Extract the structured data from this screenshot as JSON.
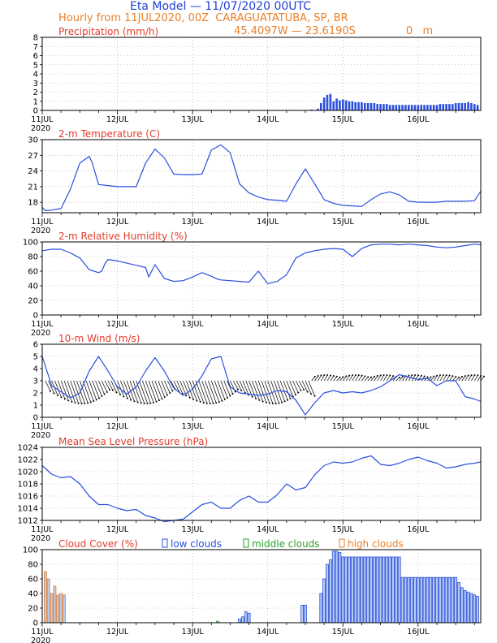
{
  "header": {
    "title": "Eta Model — 11/07/2020 00UTC",
    "subtitle": "Hourly from 11JUL2020, 00Z  CARAGUATATUBA, SP, BR",
    "coords": "45.4097W — 23.6190S",
    "elevation": "0   m"
  },
  "colors": {
    "title": "#1f3fd6",
    "subtitle": "#e8802a",
    "panel_title": "#e23b2b",
    "series": "#2a4fe0",
    "low": "#2a4fe0",
    "mid": "#2aa02a",
    "high": "#e8802a",
    "bar_fill": "#b9ccee",
    "wind": "#000000"
  },
  "chart_data": [
    {
      "type": "bar",
      "title": "Precipitation (mm/h)",
      "xticks": [
        "11JUL",
        "12JUL",
        "13JUL",
        "14JUL",
        "15JUL",
        "16JUL"
      ],
      "year_label": "2020",
      "ylim": [
        0,
        8
      ],
      "yticks": [
        0,
        1,
        2,
        3,
        4,
        5,
        6,
        7,
        8
      ],
      "grid": true,
      "x_hours": [
        80,
        86,
        88,
        89,
        90,
        91,
        92,
        93,
        94,
        95,
        96,
        97,
        98,
        99,
        100,
        101,
        102,
        103,
        104,
        105,
        106,
        107,
        108,
        109,
        110,
        111,
        112,
        113,
        114,
        115,
        116,
        117,
        118,
        119,
        120,
        121,
        122,
        123,
        124,
        125,
        126,
        127,
        128,
        129,
        130,
        131,
        132,
        133,
        134,
        135,
        136,
        137,
        138,
        139
      ],
      "values": [
        0.05,
        0.1,
        0.2,
        0.8,
        1.4,
        1.7,
        1.8,
        1.0,
        1.3,
        1.1,
        1.2,
        1.1,
        1.0,
        1.0,
        0.9,
        0.9,
        0.9,
        0.8,
        0.8,
        0.8,
        0.8,
        0.7,
        0.7,
        0.7,
        0.7,
        0.6,
        0.6,
        0.6,
        0.6,
        0.6,
        0.6,
        0.6,
        0.6,
        0.6,
        0.6,
        0.6,
        0.6,
        0.6,
        0.6,
        0.6,
        0.6,
        0.7,
        0.7,
        0.7,
        0.7,
        0.7,
        0.8,
        0.8,
        0.8,
        0.8,
        0.9,
        0.8,
        0.7,
        0.6
      ]
    },
    {
      "type": "line",
      "title": "2-m Temperature (C)",
      "xticks": [
        "11JUL",
        "12JUL",
        "13JUL",
        "14JUL",
        "15JUL",
        "16JUL"
      ],
      "year_label": "2020",
      "ylim": [
        16,
        30
      ],
      "yticks": [
        18,
        21,
        24,
        27,
        30
      ],
      "grid": true,
      "x_hours": [
        0,
        1,
        3,
        6,
        9,
        12,
        15,
        16,
        18,
        21,
        24,
        27,
        30,
        33,
        36,
        39,
        42,
        45,
        48,
        51,
        54,
        57,
        60,
        63,
        66,
        69,
        72,
        75,
        78,
        81,
        84,
        87,
        90,
        93,
        96,
        99,
        102,
        105,
        108,
        111,
        114,
        117,
        120,
        123,
        126,
        129,
        132,
        135,
        138,
        140
      ],
      "values": [
        17.0,
        16.4,
        16.5,
        16.8,
        20.5,
        25.5,
        26.8,
        25.5,
        21.4,
        21.2,
        21.0,
        21.0,
        21.0,
        25.5,
        28.2,
        26.5,
        23.4,
        23.3,
        23.3,
        23.4,
        28.0,
        29.0,
        27.5,
        21.5,
        19.8,
        19.0,
        18.5,
        18.4,
        18.2,
        21.5,
        24.4,
        21.5,
        18.5,
        17.8,
        17.4,
        17.3,
        17.2,
        18.5,
        19.6,
        20.0,
        19.4,
        18.2,
        18.0,
        18.0,
        18.0,
        18.2,
        18.2,
        18.2,
        18.3,
        20.1
      ]
    },
    {
      "type": "line",
      "title": "2-m Relative Humidity (%)",
      "xticks": [
        "11JUL",
        "12JUL",
        "13JUL",
        "14JUL",
        "15JUL",
        "16JUL"
      ],
      "year_label": "2020",
      "ylim": [
        0,
        100
      ],
      "yticks": [
        0,
        20,
        40,
        60,
        80,
        100
      ],
      "grid": true,
      "x_hours": [
        0,
        3,
        6,
        9,
        12,
        15,
        18,
        19,
        20,
        21,
        24,
        27,
        30,
        33,
        34,
        36,
        39,
        42,
        45,
        48,
        51,
        54,
        55,
        56,
        57,
        60,
        63,
        66,
        69,
        72,
        75,
        78,
        81,
        84,
        87,
        90,
        93,
        96,
        99,
        102,
        105,
        108,
        111,
        114,
        117,
        120,
        123,
        126,
        129,
        132,
        135,
        138,
        140
      ],
      "values": [
        88,
        90,
        90,
        85,
        78,
        62,
        58,
        60,
        70,
        76,
        74,
        71,
        68,
        65,
        52,
        69,
        50,
        46,
        47,
        52,
        58,
        53,
        51,
        49,
        48,
        47,
        46,
        45,
        60,
        43,
        46,
        55,
        78,
        85,
        88,
        90,
        91,
        90,
        80,
        91,
        96,
        97,
        97,
        96,
        97,
        96,
        95,
        93,
        92,
        93,
        95,
        97,
        96
      ]
    },
    {
      "type": "line",
      "title": "10-m Wind (m/s)",
      "xticks": [
        "11JUL",
        "12JUL",
        "13JUL",
        "14JUL",
        "15JUL",
        "16JUL"
      ],
      "year_label": "2020",
      "ylim": [
        0,
        6
      ],
      "yticks": [
        0,
        1,
        2,
        3,
        4,
        5,
        6
      ],
      "grid": true,
      "wind_barbs": true,
      "x_hours": [
        0,
        3,
        6,
        9,
        12,
        15,
        18,
        21,
        24,
        27,
        30,
        33,
        36,
        39,
        42,
        45,
        48,
        51,
        54,
        57,
        60,
        63,
        66,
        69,
        72,
        75,
        78,
        81,
        84,
        87,
        90,
        93,
        96,
        99,
        102,
        105,
        108,
        111,
        114,
        117,
        120,
        123,
        126,
        129,
        132,
        135,
        138,
        140
      ],
      "values": [
        5.0,
        2.6,
        2.1,
        1.6,
        2.0,
        3.8,
        5.0,
        3.8,
        2.5,
        1.9,
        2.5,
        3.8,
        4.9,
        3.8,
        2.4,
        1.8,
        2.3,
        3.4,
        4.8,
        5.0,
        2.5,
        2.0,
        1.9,
        1.8,
        1.9,
        2.2,
        2.1,
        1.4,
        0.2,
        1.2,
        2.0,
        2.2,
        2.0,
        2.1,
        2.0,
        2.2,
        2.5,
        3.0,
        3.5,
        3.3,
        3.1,
        3.2,
        2.6,
        3.0,
        3.0,
        1.7,
        1.5,
        1.3
      ]
    },
    {
      "type": "line",
      "title": "Mean Sea Level Pressure (hPa)",
      "xticks": [
        "11JUL",
        "12JUL",
        "13JUL",
        "14JUL",
        "15JUL",
        "16JUL"
      ],
      "year_label": "2020",
      "ylim": [
        1012,
        1024
      ],
      "yticks": [
        1012,
        1014,
        1016,
        1018,
        1020,
        1022,
        1024
      ],
      "grid": true,
      "x_hours": [
        0,
        3,
        6,
        9,
        12,
        15,
        18,
        21,
        24,
        27,
        30,
        33,
        36,
        39,
        42,
        45,
        48,
        51,
        54,
        57,
        60,
        63,
        66,
        69,
        72,
        75,
        78,
        81,
        84,
        87,
        90,
        93,
        96,
        99,
        102,
        105,
        108,
        111,
        114,
        117,
        120,
        123,
        126,
        129,
        132,
        135,
        138,
        140
      ],
      "values": [
        1021.0,
        1019.6,
        1019.0,
        1019.2,
        1018.0,
        1016.0,
        1014.6,
        1014.6,
        1014.0,
        1013.6,
        1013.8,
        1012.8,
        1012.4,
        1011.8,
        1012.0,
        1012.2,
        1013.4,
        1014.6,
        1015.0,
        1014.0,
        1014.0,
        1015.3,
        1016.0,
        1015.0,
        1015.0,
        1016.2,
        1018.0,
        1017.0,
        1017.4,
        1019.5,
        1021.0,
        1021.6,
        1021.4,
        1021.6,
        1022.2,
        1022.6,
        1021.2,
        1021.0,
        1021.4,
        1022.0,
        1022.4,
        1021.8,
        1021.4,
        1020.6,
        1020.8,
        1021.2,
        1021.4,
        1021.6
      ]
    },
    {
      "type": "bar",
      "title": "Cloud Cover (%)",
      "xticks": [
        "11JUL",
        "12JUL",
        "13JUL",
        "14JUL",
        "15JUL",
        "16JUL"
      ],
      "year_label": "2020",
      "ylim": [
        0,
        100
      ],
      "yticks": [
        0,
        20,
        40,
        60,
        80,
        100
      ],
      "grid": true,
      "legend": [
        {
          "name": "low clouds",
          "color": "#2a4fe0"
        },
        {
          "name": "middle clouds",
          "color": "#2aa02a"
        },
        {
          "name": "high clouds",
          "color": "#e8802a"
        }
      ],
      "series": [
        {
          "name": "high clouds",
          "x_hours": [
            1,
            2,
            3,
            4,
            5,
            6,
            7
          ],
          "values": [
            70,
            60,
            40,
            50,
            38,
            40,
            38
          ]
        },
        {
          "name": "middle clouds",
          "x_hours": [
            56
          ],
          "values": [
            2
          ]
        },
        {
          "name": "low clouds",
          "x_hours": [
            63,
            64,
            65,
            66,
            83,
            84,
            89,
            90,
            91,
            92,
            93,
            94,
            95,
            96,
            97,
            98,
            99,
            100,
            101,
            102,
            103,
            104,
            105,
            106,
            107,
            108,
            109,
            110,
            111,
            112,
            113,
            114,
            115,
            116,
            117,
            118,
            119,
            120,
            121,
            122,
            123,
            124,
            125,
            126,
            127,
            128,
            129,
            130,
            131,
            132,
            133,
            134,
            135,
            136,
            137,
            138,
            139
          ],
          "values": [
            5,
            8,
            15,
            13,
            24,
            24,
            40,
            60,
            80,
            86,
            98,
            98,
            96,
            90,
            90,
            90,
            90,
            90,
            90,
            90,
            90,
            90,
            90,
            90,
            90,
            90,
            90,
            90,
            90,
            90,
            90,
            90,
            62,
            62,
            62,
            62,
            62,
            62,
            62,
            62,
            62,
            62,
            62,
            62,
            62,
            62,
            62,
            62,
            62,
            62,
            55,
            48,
            44,
            42,
            40,
            38,
            36
          ]
        }
      ]
    }
  ]
}
